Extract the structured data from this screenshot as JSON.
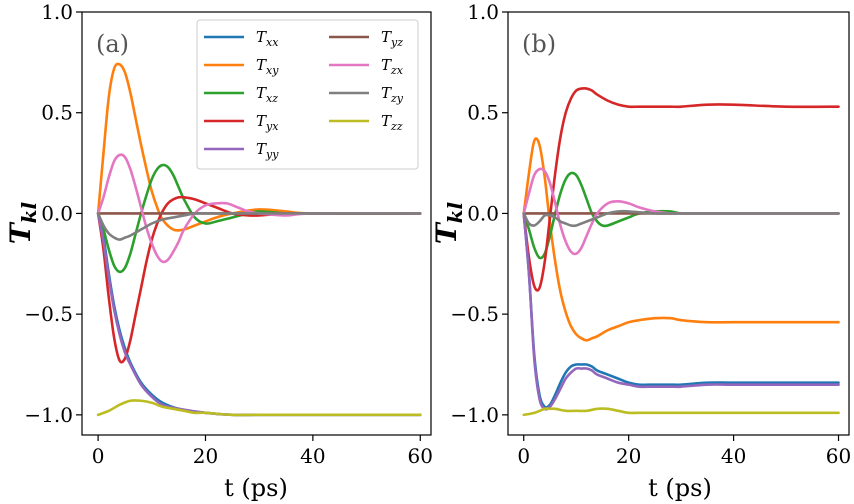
{
  "chart_data": [
    {
      "type": "line",
      "panel_label": "(a)",
      "xlabel": "t (ps)",
      "ylabel": "T",
      "ylabel_sub": "kl",
      "xlim": [
        -3,
        62
      ],
      "ylim": [
        -1.1,
        1.0
      ],
      "xticks": [
        "0",
        "20",
        "40",
        "60"
      ],
      "yticks": [
        "1.0",
        "0.5",
        "0.0",
        "−0.5",
        "−1.0"
      ],
      "legend": "top-right",
      "series": [
        {
          "name": "T",
          "sub": "xx",
          "color": "#1f77b4",
          "x": [
            0,
            1,
            2,
            3,
            4,
            5,
            6,
            8,
            10,
            12,
            15,
            20,
            25,
            30,
            40,
            60
          ],
          "y": [
            0,
            -0.12,
            -0.3,
            -0.46,
            -0.58,
            -0.67,
            -0.74,
            -0.84,
            -0.9,
            -0.94,
            -0.97,
            -0.99,
            -1.0,
            -1.0,
            -1.0,
            -1.0
          ]
        },
        {
          "name": "T",
          "sub": "xy",
          "color": "#ff7f0e",
          "x": [
            0,
            1,
            2,
            3,
            4,
            5,
            6,
            7,
            8,
            9,
            10,
            11,
            12,
            14,
            16,
            18,
            20,
            22,
            25,
            30,
            35,
            40,
            60
          ],
          "y": [
            0,
            0.3,
            0.58,
            0.72,
            0.74,
            0.7,
            0.6,
            0.47,
            0.34,
            0.22,
            0.11,
            0.03,
            -0.03,
            -0.08,
            -0.08,
            -0.06,
            -0.04,
            -0.02,
            0.0,
            0.02,
            0.01,
            0.0,
            0.0
          ]
        },
        {
          "name": "T",
          "sub": "xz",
          "color": "#2ca02c",
          "x": [
            0,
            1,
            2,
            3,
            4,
            5,
            6,
            7,
            8,
            9,
            10,
            11,
            12,
            13,
            14,
            15,
            16,
            18,
            20,
            22,
            25,
            28,
            30,
            35,
            40,
            60
          ],
          "y": [
            0,
            -0.08,
            -0.18,
            -0.26,
            -0.29,
            -0.27,
            -0.2,
            -0.1,
            0.0,
            0.09,
            0.17,
            0.22,
            0.24,
            0.23,
            0.19,
            0.13,
            0.07,
            -0.02,
            -0.05,
            -0.04,
            -0.02,
            0.0,
            0.01,
            0.0,
            0.0,
            0.0
          ]
        },
        {
          "name": "T",
          "sub": "yx",
          "color": "#d62728",
          "x": [
            0,
            1,
            2,
            3,
            4,
            5,
            6,
            7,
            8,
            9,
            10,
            11,
            12,
            13,
            14,
            15,
            16,
            18,
            20,
            22,
            25,
            28,
            30,
            35,
            40,
            60
          ],
          "y": [
            0,
            -0.18,
            -0.42,
            -0.62,
            -0.73,
            -0.72,
            -0.63,
            -0.5,
            -0.37,
            -0.24,
            -0.13,
            -0.05,
            0.01,
            0.05,
            0.07,
            0.08,
            0.08,
            0.07,
            0.05,
            0.03,
            0.0,
            -0.01,
            -0.01,
            0.0,
            0.0,
            0.0
          ]
        },
        {
          "name": "T",
          "sub": "yy",
          "color": "#9467bd",
          "x": [
            0,
            1,
            2,
            3,
            4,
            5,
            6,
            8,
            10,
            12,
            15,
            20,
            25,
            30,
            40,
            60
          ],
          "y": [
            0,
            -0.14,
            -0.32,
            -0.48,
            -0.6,
            -0.69,
            -0.75,
            -0.85,
            -0.91,
            -0.95,
            -0.97,
            -0.99,
            -1.0,
            -1.0,
            -1.0,
            -1.0
          ]
        },
        {
          "name": "T",
          "sub": "yz",
          "color": "#8c564b",
          "x": [
            0,
            60
          ],
          "y": [
            0,
            0
          ]
        },
        {
          "name": "T",
          "sub": "zx",
          "color": "#e377c2",
          "x": [
            0,
            1,
            2,
            3,
            4,
            5,
            6,
            7,
            8,
            9,
            10,
            11,
            12,
            13,
            14,
            15,
            16,
            18,
            20,
            22,
            24,
            26,
            28,
            30,
            35,
            40,
            60
          ],
          "y": [
            0,
            0.08,
            0.18,
            0.26,
            0.29,
            0.28,
            0.22,
            0.13,
            0.03,
            -0.07,
            -0.15,
            -0.21,
            -0.24,
            -0.23,
            -0.19,
            -0.14,
            -0.08,
            0.0,
            0.04,
            0.05,
            0.05,
            0.03,
            0.01,
            0.0,
            -0.01,
            0.0,
            0.0
          ]
        },
        {
          "name": "T",
          "sub": "zy",
          "color": "#7f7f7f",
          "x": [
            0,
            1,
            2,
            3,
            4,
            5,
            6,
            8,
            10,
            12,
            14,
            16,
            18,
            20,
            25,
            30,
            60
          ],
          "y": [
            0,
            -0.06,
            -0.1,
            -0.12,
            -0.13,
            -0.12,
            -0.11,
            -0.08,
            -0.05,
            -0.03,
            -0.02,
            -0.01,
            0.0,
            0.0,
            0.0,
            0.0,
            0.0
          ]
        },
        {
          "name": "T",
          "sub": "zz",
          "color": "#bcbd22",
          "x": [
            0,
            2,
            4,
            6,
            8,
            10,
            12,
            14,
            16,
            18,
            20,
            25,
            30,
            40,
            60
          ],
          "y": [
            -1.0,
            -0.98,
            -0.95,
            -0.93,
            -0.93,
            -0.94,
            -0.96,
            -0.97,
            -0.98,
            -0.99,
            -0.99,
            -1.0,
            -1.0,
            -1.0,
            -1.0
          ]
        }
      ]
    },
    {
      "type": "line",
      "panel_label": "(b)",
      "xlabel": "t (ps)",
      "ylabel": "T",
      "ylabel_sub": "kl",
      "xlim": [
        -3,
        62
      ],
      "ylim": [
        -1.1,
        1.0
      ],
      "xticks": [
        "0",
        "20",
        "40",
        "60"
      ],
      "yticks": [
        "1.0",
        "0.5",
        "0.0",
        "−0.5",
        "−1.0"
      ],
      "series": [
        {
          "name": "T",
          "sub": "xx",
          "color": "#1f77b4",
          "x": [
            0,
            1,
            2,
            3,
            4,
            5,
            6,
            7,
            8,
            9,
            10,
            11,
            12,
            13,
            14,
            16,
            18,
            20,
            22,
            25,
            28,
            30,
            35,
            40,
            50,
            60
          ],
          "y": [
            0,
            -0.3,
            -0.7,
            -0.9,
            -0.96,
            -0.95,
            -0.9,
            -0.84,
            -0.79,
            -0.76,
            -0.75,
            -0.75,
            -0.75,
            -0.76,
            -0.78,
            -0.8,
            -0.82,
            -0.84,
            -0.85,
            -0.85,
            -0.85,
            -0.85,
            -0.84,
            -0.84,
            -0.84,
            -0.84
          ]
        },
        {
          "name": "T",
          "sub": "xy",
          "color": "#ff7f0e",
          "x": [
            0,
            1,
            2,
            3,
            4,
            5,
            6,
            7,
            8,
            9,
            10,
            11,
            12,
            13,
            14,
            16,
            18,
            20,
            22,
            25,
            28,
            30,
            35,
            40,
            50,
            60
          ],
          "y": [
            0,
            0.2,
            0.36,
            0.34,
            0.18,
            -0.05,
            -0.24,
            -0.39,
            -0.49,
            -0.56,
            -0.6,
            -0.62,
            -0.63,
            -0.62,
            -0.61,
            -0.58,
            -0.56,
            -0.54,
            -0.53,
            -0.52,
            -0.52,
            -0.53,
            -0.54,
            -0.54,
            -0.54,
            -0.54
          ]
        },
        {
          "name": "T",
          "sub": "xz",
          "color": "#2ca02c",
          "x": [
            0,
            1,
            2,
            3,
            4,
            5,
            6,
            7,
            8,
            9,
            10,
            11,
            12,
            13,
            14,
            15,
            16,
            18,
            20,
            22,
            25,
            28,
            30,
            35,
            40,
            60
          ],
          "y": [
            0,
            -0.08,
            -0.17,
            -0.22,
            -0.2,
            -0.11,
            0.0,
            0.1,
            0.17,
            0.2,
            0.19,
            0.14,
            0.07,
            0.0,
            -0.04,
            -0.06,
            -0.06,
            -0.04,
            -0.02,
            0.0,
            0.01,
            0.01,
            0.0,
            0.0,
            0.0,
            0.0
          ]
        },
        {
          "name": "T",
          "sub": "yx",
          "color": "#d62728",
          "x": [
            0,
            1,
            2,
            3,
            4,
            5,
            6,
            7,
            8,
            9,
            10,
            11,
            12,
            13,
            14,
            16,
            18,
            20,
            22,
            25,
            28,
            30,
            35,
            40,
            50,
            60
          ],
          "y": [
            0,
            -0.22,
            -0.36,
            -0.37,
            -0.24,
            -0.02,
            0.2,
            0.38,
            0.5,
            0.57,
            0.61,
            0.62,
            0.62,
            0.61,
            0.59,
            0.56,
            0.54,
            0.53,
            0.53,
            0.53,
            0.53,
            0.53,
            0.54,
            0.54,
            0.53,
            0.53
          ]
        },
        {
          "name": "T",
          "sub": "yy",
          "color": "#9467bd",
          "x": [
            0,
            1,
            2,
            3,
            4,
            5,
            6,
            7,
            8,
            9,
            10,
            11,
            12,
            13,
            14,
            16,
            18,
            20,
            22,
            25,
            28,
            30,
            35,
            40,
            50,
            60
          ],
          "y": [
            0,
            -0.3,
            -0.72,
            -0.92,
            -0.97,
            -0.96,
            -0.92,
            -0.87,
            -0.82,
            -0.79,
            -0.77,
            -0.77,
            -0.77,
            -0.78,
            -0.8,
            -0.82,
            -0.84,
            -0.85,
            -0.86,
            -0.86,
            -0.86,
            -0.86,
            -0.85,
            -0.85,
            -0.85,
            -0.85
          ]
        },
        {
          "name": "T",
          "sub": "yz",
          "color": "#8c564b",
          "x": [
            0,
            60
          ],
          "y": [
            0,
            0
          ]
        },
        {
          "name": "T",
          "sub": "zx",
          "color": "#e377c2",
          "x": [
            0,
            1,
            2,
            3,
            4,
            5,
            6,
            7,
            8,
            9,
            10,
            11,
            12,
            13,
            14,
            16,
            18,
            20,
            22,
            25,
            28,
            30,
            35,
            40,
            60
          ],
          "y": [
            0,
            0.1,
            0.19,
            0.22,
            0.21,
            0.15,
            0.05,
            -0.06,
            -0.14,
            -0.19,
            -0.2,
            -0.17,
            -0.11,
            -0.05,
            0.0,
            0.05,
            0.06,
            0.05,
            0.03,
            0.01,
            0.0,
            0.0,
            0.0,
            0.0,
            0.0
          ]
        },
        {
          "name": "T",
          "sub": "zy",
          "color": "#7f7f7f",
          "x": [
            0,
            1,
            2,
            3,
            4,
            5,
            6,
            7,
            8,
            9,
            10,
            11,
            12,
            14,
            16,
            18,
            20,
            25,
            30,
            60
          ],
          "y": [
            0,
            -0.05,
            -0.06,
            -0.04,
            -0.01,
            -0.01,
            -0.02,
            -0.04,
            -0.05,
            -0.06,
            -0.06,
            -0.05,
            -0.04,
            -0.02,
            0.0,
            0.01,
            0.01,
            0.0,
            0.0,
            0.0
          ]
        },
        {
          "name": "T",
          "sub": "zz",
          "color": "#bcbd22",
          "x": [
            0,
            2,
            4,
            5,
            6,
            8,
            10,
            12,
            14,
            16,
            18,
            20,
            22,
            25,
            30,
            40,
            60
          ],
          "y": [
            -1.0,
            -0.99,
            -0.97,
            -0.97,
            -0.97,
            -0.98,
            -0.98,
            -0.98,
            -0.97,
            -0.97,
            -0.98,
            -0.99,
            -0.99,
            -0.99,
            -0.99,
            -0.99,
            -0.99
          ]
        }
      ]
    }
  ]
}
